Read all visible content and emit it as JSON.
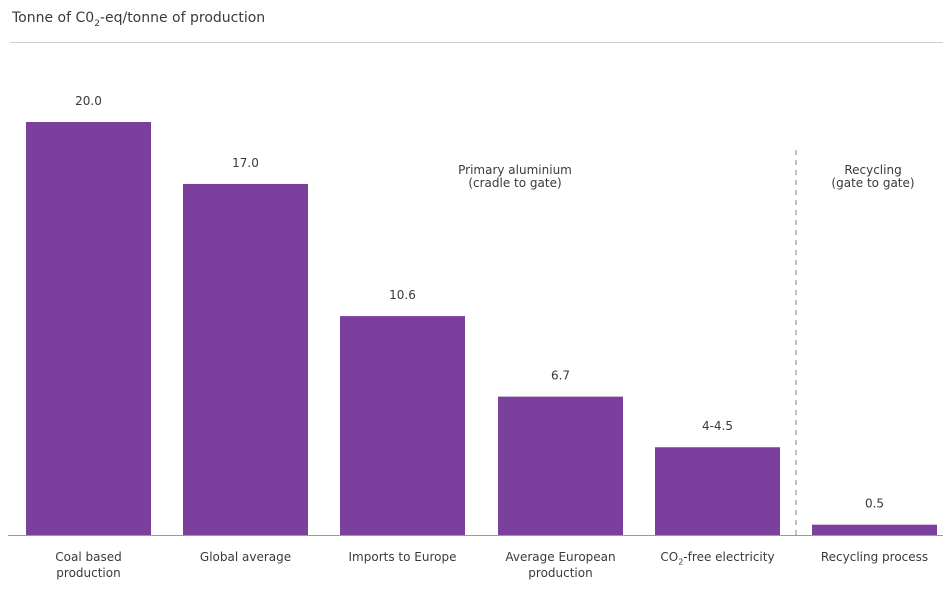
{
  "chart_data": {
    "type": "bar",
    "title": "Tonne of C0",
    "title_sub": "2",
    "title_rest": "-eq/tonne of production",
    "categories": [
      {
        "label": "Coal based",
        "label2": "production",
        "sub": ""
      },
      {
        "label": "Global average",
        "label2": "",
        "sub": ""
      },
      {
        "label": "Imports to Europe",
        "label2": "",
        "sub": ""
      },
      {
        "label": "Average European",
        "label2": "production",
        "sub": ""
      },
      {
        "label": "CO",
        "label2": "",
        "sub": "2",
        "label_rest": "-free electricity"
      },
      {
        "label": "Recycling process",
        "label2": "",
        "sub": ""
      }
    ],
    "values": [
      20.0,
      17.0,
      10.6,
      6.7,
      4.25,
      0.5
    ],
    "value_labels": [
      "20.0",
      "17.0",
      "10.6",
      "6.7",
      "4-4.5",
      "0.5"
    ],
    "ylim": [
      0,
      21
    ],
    "bar_color": "#7b3f9e",
    "regions": [
      {
        "line1": "Primary aluminium",
        "line2": "(cradle to gate)"
      },
      {
        "line1": "Recycling",
        "line2": "(gate to gate)"
      }
    ],
    "grid": false
  }
}
